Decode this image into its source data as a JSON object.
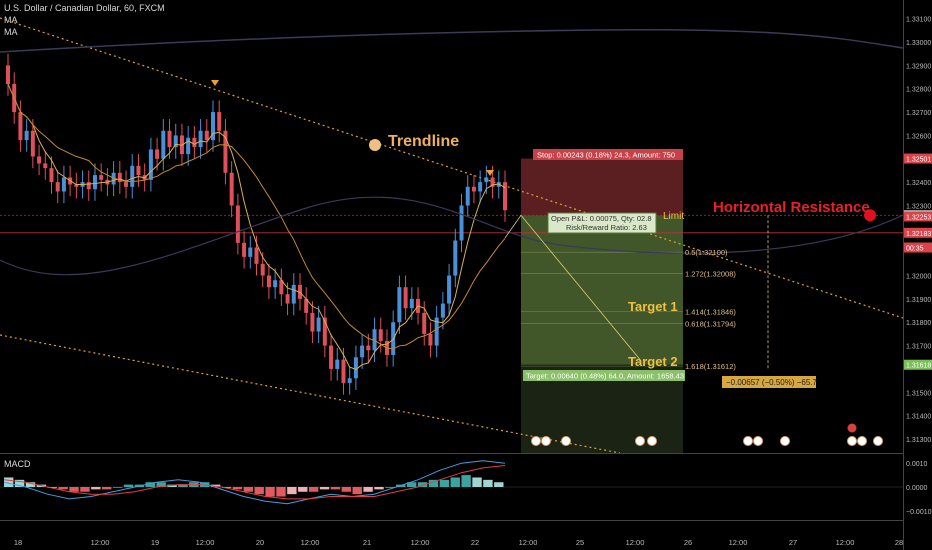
{
  "header": {
    "symbol_line": "U.S. Dollar / Canadian Dollar, 60, FXCM",
    "indicator1": "MA",
    "indicator2": "MA"
  },
  "macd_label": "MACD",
  "colors": {
    "up": "#4a90d9",
    "down": "#e0505a",
    "ma_slow": "#c58a2a",
    "ma_fast": "#d8b24a",
    "trendline": "#e0a030",
    "resistance": "#e01020",
    "stop_zone": "#7a2a2e",
    "target_zone": "#5d7a3a",
    "macd_line": "#3fa0e0",
    "signal_line": "#e04040"
  },
  "annotations": {
    "trendline_label": "Trendline",
    "resistance_label": "Horizontal Resistance",
    "target1_label": "Target 1",
    "target2_label": "Target 2",
    "limit_label": "Limit",
    "stop_box": "Stop: 0.00243 (0.18%) 24.3, Amount: 750",
    "open_pl": "Open P&L: 0.00075, Qty: 02.8",
    "risk_reward": "Risk/Reward Ratio: 2.63",
    "target_box": "Target: 0.00640 (0.48%) 64.0, Amount: 1658.43",
    "measure_box": "−0.00657 (−0.50%) −65.7",
    "fib_labels": [
      "0.5(1.32100)",
      "1.272(1.32008)",
      "1.414(1.31846)",
      "0.618(1.31794)",
      "1.618(1.31612)"
    ]
  },
  "chart_data": {
    "type": "candlestick",
    "title": "U.S. Dollar / Canadian Dollar, 60, FXCM",
    "price_axis": {
      "ticks": [
        "1.33100",
        "1.33000",
        "1.32900",
        "1.32800",
        "1.32700",
        "1.32600",
        "1.32400",
        "1.32300",
        "1.32000",
        "1.31900",
        "1.31800",
        "1.31700",
        "1.31500",
        "1.31400",
        "1.31300"
      ],
      "tick_values": [
        1.331,
        1.33,
        1.329,
        1.328,
        1.327,
        1.326,
        1.324,
        1.323,
        1.32,
        1.319,
        1.318,
        1.317,
        1.315,
        1.314,
        1.313
      ],
      "ylim": [
        1.3124,
        1.3318
      ],
      "badges": [
        {
          "label": "1.32501",
          "value": 1.32501,
          "color": "#d9434a"
        },
        {
          "label": "1.32258",
          "value": 1.32258,
          "color": "#d8d8d8"
        },
        {
          "label": "1.32253",
          "value": 1.32253,
          "color": "#d9434a"
        },
        {
          "label": "1.32183",
          "value": 1.32183,
          "color": "#d9434a"
        },
        {
          "label": "00:35",
          "value": 1.3212,
          "color": "#d9434a"
        },
        {
          "label": "1.31618",
          "value": 1.31618,
          "color": "#7bbf5a"
        }
      ]
    },
    "time_axis": [
      "18",
      "12:00",
      "19",
      "12:00",
      "20",
      "12:00",
      "21",
      "12:00",
      "22",
      "12:00",
      "25",
      "12:00",
      "26",
      "12:00",
      "27",
      "12:00",
      "28"
    ],
    "candles_close": [
      1.3282,
      1.327,
      1.3258,
      1.3262,
      1.3251,
      1.3248,
      1.3246,
      1.324,
      1.3236,
      1.3242,
      1.3239,
      1.3238,
      1.324,
      1.3237,
      1.3243,
      1.3241,
      1.3239,
      1.3244,
      1.324,
      1.3238,
      1.3247,
      1.3243,
      1.3241,
      1.3254,
      1.325,
      1.3262,
      1.3255,
      1.326,
      1.3252,
      1.3259,
      1.3255,
      1.3262,
      1.3258,
      1.327,
      1.3262,
      1.3244,
      1.323,
      1.3214,
      1.3208,
      1.3212,
      1.3205,
      1.32,
      1.3195,
      1.3198,
      1.3192,
      1.3188,
      1.3196,
      1.319,
      1.3184,
      1.3176,
      1.3182,
      1.317,
      1.316,
      1.3164,
      1.3154,
      1.3156,
      1.3165,
      1.317,
      1.3168,
      1.3177,
      1.3172,
      1.3166,
      1.318,
      1.3195,
      1.3186,
      1.319,
      1.3184,
      1.3175,
      1.317,
      1.3182,
      1.3188,
      1.32,
      1.3215,
      1.323,
      1.3238,
      1.3236,
      1.324,
      1.3242,
      1.3238,
      1.324,
      1.3228
    ],
    "ylabel": "",
    "macd": {
      "ticks": [
        "0.0010",
        "0.0000",
        "−0.0010"
      ],
      "tick_values": [
        0.001,
        0.0,
        -0.001
      ],
      "histogram": [
        0.0004,
        0.0003,
        0.0002,
        0.0001,
        0.0,
        -0.0001,
        -0.0002,
        -0.0002,
        -0.0001,
        -0.0001,
        0.0,
        0.0001,
        0.0001,
        0.0002,
        0.0002,
        0.0001,
        0.0001,
        0.0002,
        0.0002,
        0.0001,
        0.0,
        -0.0001,
        -0.0002,
        -0.0003,
        -0.0004,
        -0.0004,
        -0.0003,
        -0.0002,
        -0.0002,
        -0.0001,
        -0.0001,
        -0.0002,
        -0.0003,
        -0.0002,
        -0.0001,
        0.0,
        0.0001,
        0.0002,
        0.0002,
        0.0003,
        0.0003,
        0.0004,
        0.0005,
        0.0004,
        0.0003,
        0.0002
      ],
      "macd_line": [
        0.0002,
        0.0,
        -0.0003,
        -0.0005,
        -0.0004,
        -0.0002,
        0.0,
        0.0002,
        0.0003,
        0.0002,
        -0.0001,
        -0.0004,
        -0.0006,
        -0.0007,
        -0.0005,
        -0.0003,
        -0.0004,
        -0.0003,
        0.0,
        0.0003,
        0.0007,
        0.001,
        0.0011,
        0.001
      ],
      "signal_line": [
        0.0003,
        0.0002,
        0.0,
        -0.0002,
        -0.0003,
        -0.0003,
        -0.0002,
        0.0,
        0.0001,
        0.0001,
        0.0,
        -0.0002,
        -0.0004,
        -0.0005,
        -0.0005,
        -0.0004,
        -0.0004,
        -0.0004,
        -0.0002,
        0.0,
        0.0003,
        0.0006,
        0.0008,
        0.0009
      ]
    },
    "grid": false,
    "legend": "none"
  }
}
